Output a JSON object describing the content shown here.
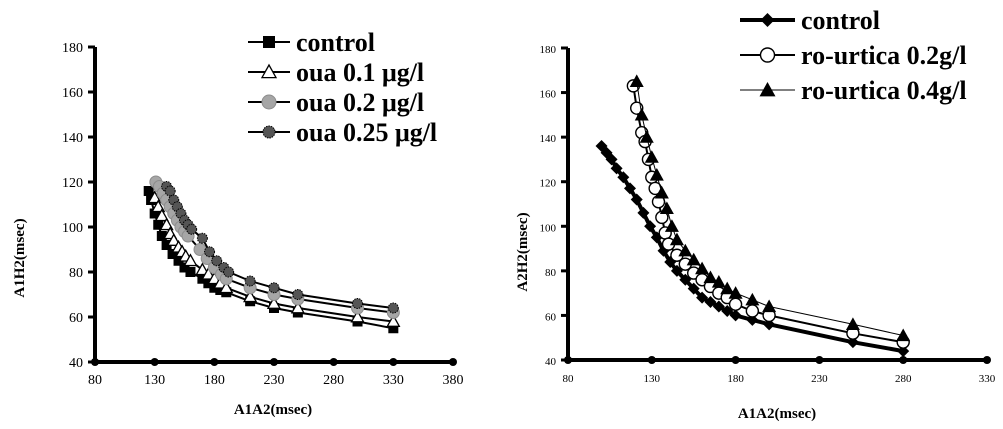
{
  "chart_data": [
    {
      "type": "line",
      "xlabel": "A1A2(msec)",
      "ylabel": "A1H2(msec)",
      "xlim": [
        80,
        380
      ],
      "ylim": [
        40,
        180
      ],
      "xticks": [
        80,
        130,
        180,
        230,
        280,
        330,
        380
      ],
      "yticks": [
        40,
        60,
        80,
        100,
        120,
        140,
        160,
        180
      ],
      "grid": false,
      "legend_position": "top-right",
      "series": [
        {
          "name": "control",
          "marker": "square",
          "x": [
            125,
            127,
            130,
            133,
            136,
            140,
            145,
            150,
            155,
            160,
            170,
            175,
            180,
            185,
            190,
            210,
            230,
            250,
            300,
            330
          ],
          "y": [
            116,
            112,
            106,
            101,
            96,
            92,
            88,
            85,
            82,
            80,
            77,
            75,
            73,
            72,
            71,
            67,
            64,
            62,
            58,
            55
          ]
        },
        {
          "name": "oua 0.1 μg/l",
          "marker": "triangle-open",
          "x": [
            130,
            133,
            136,
            140,
            143,
            146,
            150,
            153,
            156,
            160,
            170,
            175,
            180,
            185,
            190,
            210,
            230,
            250,
            300,
            330
          ],
          "y": [
            113,
            109,
            105,
            101,
            97,
            94,
            91,
            89,
            87,
            85,
            81,
            79,
            77,
            75,
            73,
            69,
            66,
            64,
            60,
            58
          ]
        },
        {
          "name": "oua 0.2 μg/l",
          "marker": "circle-gray",
          "x": [
            131,
            134,
            137,
            140,
            143,
            146,
            149,
            152,
            155,
            158,
            168,
            174,
            180,
            186,
            190,
            210,
            230,
            250,
            300,
            330
          ],
          "y": [
            120,
            118,
            115,
            112,
            109,
            106,
            103,
            100,
            98,
            96,
            90,
            86,
            82,
            79,
            77,
            73,
            70,
            68,
            64,
            62
          ]
        },
        {
          "name": "oua 0.25 μg/l",
          "marker": "circle-dotted",
          "x": [
            140,
            143,
            146,
            149,
            152,
            155,
            158,
            161,
            170,
            176,
            182,
            188,
            192,
            210,
            230,
            250,
            300,
            330
          ],
          "y": [
            118,
            116,
            112,
            109,
            106,
            103,
            101,
            99,
            95,
            89,
            85,
            82,
            80,
            76,
            73,
            70,
            66,
            64
          ]
        }
      ]
    },
    {
      "type": "line",
      "xlabel": "A1A2(msec)",
      "ylabel": "A2H2(msec)",
      "xlim": [
        80,
        330
      ],
      "ylim": [
        40,
        180
      ],
      "xticks": [
        80,
        130,
        180,
        230,
        280,
        330
      ],
      "yticks": [
        40,
        60,
        80,
        100,
        120,
        140,
        160,
        180
      ],
      "grid": false,
      "legend_position": "top-right",
      "series": [
        {
          "name": "control",
          "marker": "diamond",
          "x": [
            100,
            103,
            106,
            109,
            113,
            117,
            121,
            125,
            129,
            133,
            137,
            141,
            145,
            150,
            155,
            160,
            165,
            170,
            175,
            180,
            190,
            200,
            250,
            280
          ],
          "y": [
            136,
            133,
            130,
            126,
            122,
            117,
            112,
            106,
            100,
            95,
            89,
            84,
            80,
            76,
            72,
            68,
            66,
            64,
            62,
            60,
            58,
            56,
            48,
            44
          ]
        },
        {
          "name": "ro-urtica 0.2g/l",
          "marker": "circle-open",
          "x": [
            119,
            121,
            124,
            126,
            128,
            130,
            132,
            134,
            136,
            138,
            140,
            145,
            150,
            155,
            160,
            165,
            170,
            175,
            180,
            190,
            200,
            250,
            280
          ],
          "y": [
            163,
            153,
            142,
            138,
            130,
            122,
            117,
            111,
            104,
            97,
            92,
            87,
            83,
            79,
            76,
            73,
            70,
            68,
            65,
            62,
            60,
            52,
            48
          ]
        },
        {
          "name": "ro-urtica 0.4g/l",
          "marker": "triangle-filled",
          "x": [
            121,
            124,
            127,
            130,
            133,
            136,
            139,
            142,
            145,
            150,
            155,
            160,
            165,
            170,
            175,
            180,
            190,
            200,
            250,
            280
          ],
          "y": [
            165,
            150,
            140,
            131,
            123,
            115,
            108,
            100,
            94,
            89,
            85,
            81,
            77,
            75,
            72,
            70,
            67,
            64,
            56,
            51
          ]
        }
      ]
    }
  ]
}
